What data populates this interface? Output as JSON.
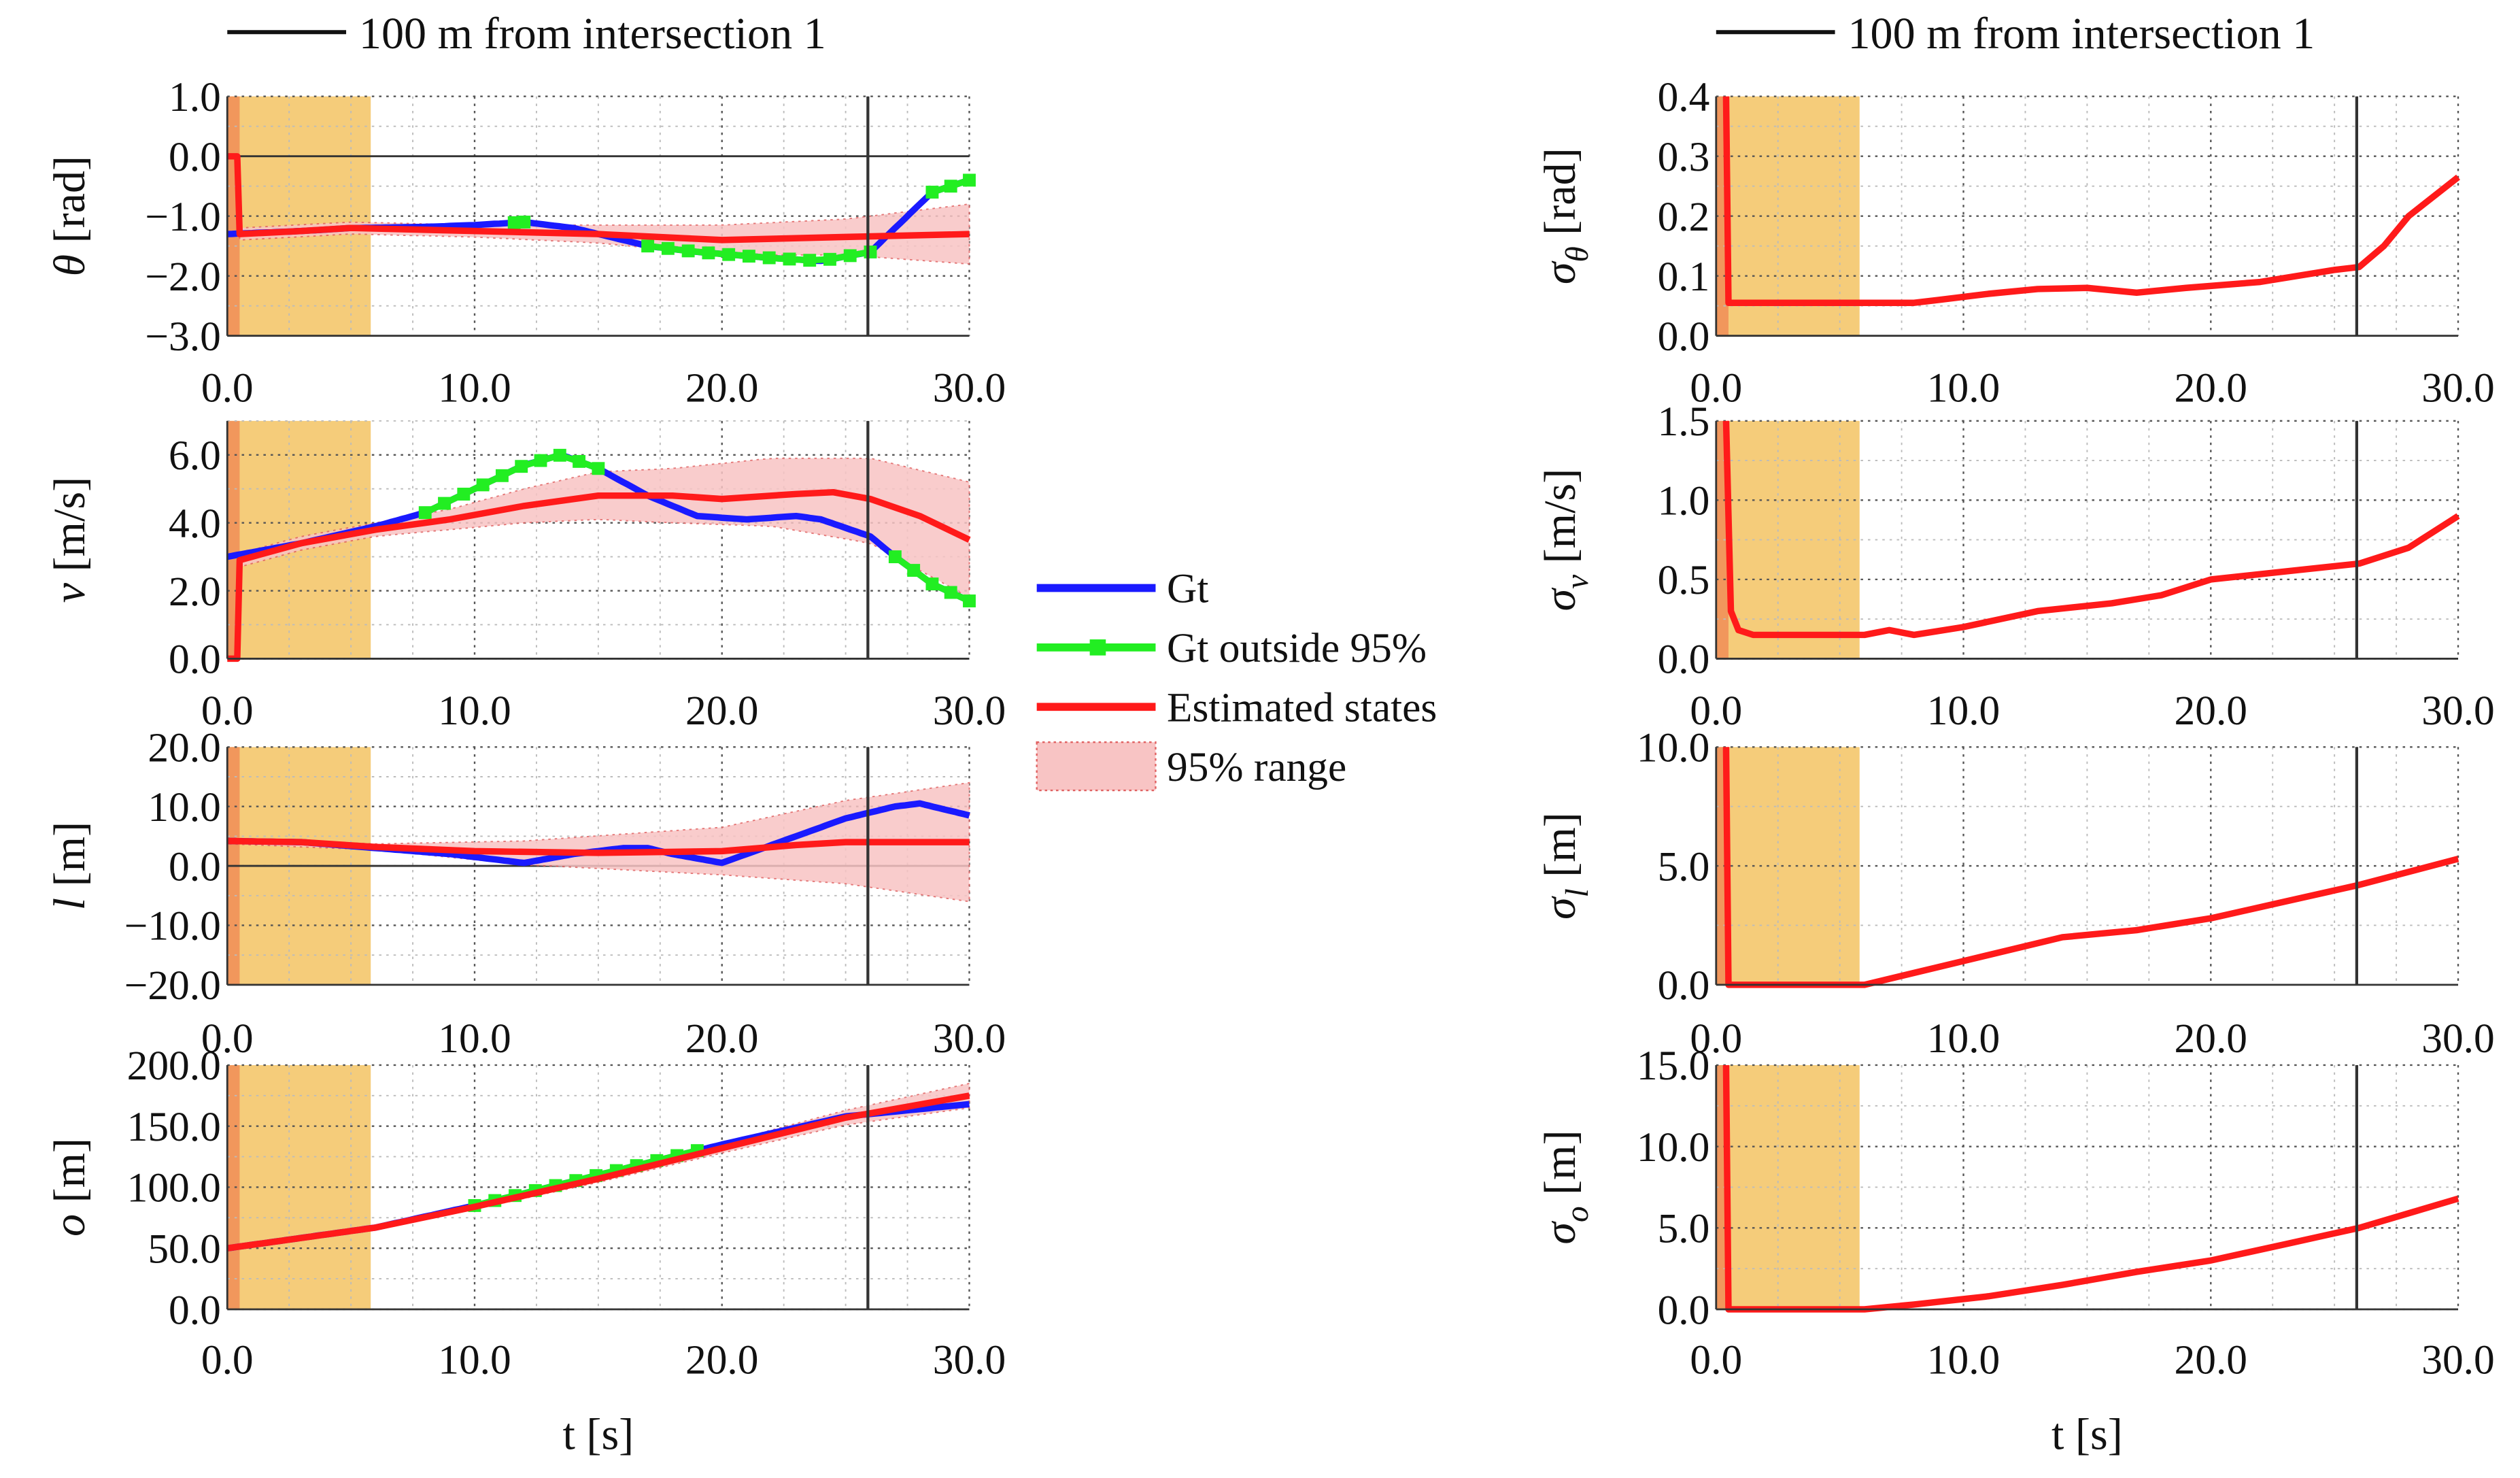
{
  "colors": {
    "gt": "#1a1aff",
    "gt_out": "#22ee22",
    "est": "#ff1a1a",
    "band": "#f8c4c4",
    "band_edge": "#e06060",
    "init": "#f5cc7a",
    "init_edge": "#f08050",
    "marker_line": "#333333"
  },
  "legend": {
    "items": [
      {
        "label": "Gt",
        "type": "line",
        "color_key": "gt"
      },
      {
        "label": "Gt outside 95%",
        "type": "marker-line",
        "color_key": "gt_out"
      },
      {
        "label": "Estimated states",
        "type": "line",
        "color_key": "est"
      },
      {
        "label": "95% range",
        "type": "patch",
        "color_key": "band"
      }
    ]
  },
  "chart_data": [
    {
      "type": "line",
      "column": "left",
      "title": "100 m from intersection 1",
      "ylabel": {
        "sym": "θ",
        "sub": "",
        "unit": " [rad]"
      },
      "xlabel": "",
      "ylim": [
        -3,
        1
      ],
      "yticks": [
        1,
        0,
        -1,
        -2,
        -3
      ],
      "ytick_labels": [
        "1.0",
        "0.0",
        "−1.0",
        "−2.0",
        "−3.0"
      ],
      "xlim": [
        0,
        30
      ],
      "xticks": [
        0,
        10,
        20,
        30
      ],
      "xtick_labels": [
        "0.0",
        "10.0",
        "20.0",
        "30.0"
      ],
      "zero_line": true,
      "init_period": [
        0,
        5.8
      ],
      "marker_t": 25.9,
      "gt": {
        "t": [
          0,
          3,
          5,
          8,
          10,
          12,
          14,
          16,
          17,
          19,
          22,
          24,
          26,
          27,
          28.5,
          30
        ],
        "y": [
          -1.3,
          -1.25,
          -1.2,
          -1.18,
          -1.15,
          -1.1,
          -1.2,
          -1.4,
          -1.5,
          -1.6,
          -1.7,
          -1.75,
          -1.6,
          -1.2,
          -0.6,
          -0.4
        ]
      },
      "gt_outside": [
        [
          11.6,
          12
        ],
        [
          17,
          26
        ],
        [
          28.5,
          30
        ]
      ],
      "est": {
        "t": [
          0,
          0.4,
          0.5,
          3,
          5,
          10,
          15,
          20,
          25,
          30
        ],
        "y": [
          0,
          0,
          -1.3,
          -1.25,
          -1.2,
          -1.25,
          -1.3,
          -1.4,
          -1.35,
          -1.3
        ]
      },
      "band": {
        "t": [
          0.5,
          5,
          10,
          15,
          20,
          25,
          30
        ],
        "lo": [
          -1.4,
          -1.3,
          -1.35,
          -1.45,
          -1.65,
          -1.65,
          -1.8
        ],
        "hi": [
          -1.2,
          -1.1,
          -1.15,
          -1.15,
          -1.15,
          -1.05,
          -0.8
        ]
      }
    },
    {
      "type": "line",
      "column": "left",
      "ylabel": {
        "sym": "v",
        "sub": "",
        "unit": " [m/s]"
      },
      "ylim": [
        0,
        7
      ],
      "yticks": [
        0,
        2,
        4,
        6
      ],
      "ytick_labels": [
        "0.0",
        "2.0",
        "4.0",
        "6.0"
      ],
      "xlim": [
        0,
        30
      ],
      "xticks": [
        0,
        10,
        20,
        30
      ],
      "xtick_labels": [
        "0.0",
        "10.0",
        "20.0",
        "30.0"
      ],
      "zero_line": false,
      "init_period": [
        0,
        5.8
      ],
      "marker_t": 25.9,
      "gt": {
        "t": [
          0,
          3,
          6,
          8,
          10,
          12,
          13.5,
          15,
          17,
          19,
          21,
          23,
          24,
          26,
          27,
          28.5,
          30
        ],
        "y": [
          3.0,
          3.4,
          3.9,
          4.3,
          5.0,
          5.7,
          6.0,
          5.6,
          4.8,
          4.2,
          4.1,
          4.2,
          4.1,
          3.6,
          3.0,
          2.2,
          1.7
        ]
      },
      "gt_outside": [
        [
          8,
          15
        ],
        [
          27,
          30
        ]
      ],
      "est": {
        "t": [
          0,
          0.4,
          0.5,
          3,
          6,
          9,
          12,
          15,
          18,
          20,
          23,
          24.5,
          26,
          28,
          30
        ],
        "y": [
          0,
          0,
          2.9,
          3.4,
          3.8,
          4.1,
          4.5,
          4.8,
          4.8,
          4.7,
          4.85,
          4.9,
          4.7,
          4.2,
          3.5
        ]
      },
      "band": {
        "t": [
          0.5,
          3,
          6,
          9,
          12,
          15,
          18,
          22,
          26,
          30
        ],
        "lo": [
          2.7,
          3.2,
          3.6,
          3.8,
          4.0,
          4.1,
          4.0,
          3.9,
          3.4,
          1.8
        ],
        "hi": [
          3.1,
          3.6,
          4.0,
          4.4,
          5.0,
          5.5,
          5.6,
          5.9,
          5.9,
          5.2
        ]
      }
    },
    {
      "type": "line",
      "column": "left",
      "ylabel": {
        "sym": "l",
        "sub": "",
        "unit": " [m]"
      },
      "ylim": [
        -20,
        20
      ],
      "yticks": [
        20,
        10,
        0,
        -10,
        -20
      ],
      "ytick_labels": [
        "20.0",
        "10.0",
        "0.0",
        "−10.0",
        "−20.0"
      ],
      "xlim": [
        0,
        30
      ],
      "xticks": [
        0,
        10,
        20,
        30
      ],
      "xtick_labels": [
        "0.0",
        "10.0",
        "20.0",
        "30.0"
      ],
      "zero_line": true,
      "init_period": [
        0,
        5.8
      ],
      "marker_t": 25.9,
      "gt": {
        "t": [
          0,
          3,
          6,
          9,
          11,
          12,
          14,
          16,
          17,
          18,
          20,
          21,
          23,
          25,
          27,
          28,
          30
        ],
        "y": [
          4.2,
          4,
          3,
          2,
          1,
          0.5,
          2,
          3,
          3,
          2,
          0.5,
          2,
          5,
          8,
          10,
          10.5,
          8.5
        ]
      },
      "gt_outside": [],
      "est": {
        "t": [
          0,
          3,
          6,
          10,
          15,
          20,
          23,
          25,
          30
        ],
        "y": [
          4.2,
          4,
          3.2,
          2.5,
          2.2,
          2.5,
          3.5,
          4,
          4
        ]
      },
      "band": {
        "t": [
          0,
          6,
          12,
          20,
          25,
          30
        ],
        "lo": [
          3.7,
          2.7,
          0.2,
          -1.5,
          -3,
          -6
        ],
        "hi": [
          4.7,
          3.7,
          4.2,
          6.5,
          11,
          14
        ]
      }
    },
    {
      "type": "line",
      "column": "left",
      "ylabel": {
        "sym": "o",
        "sub": "",
        "unit": " [m]"
      },
      "xlabel": "t [s]",
      "ylim": [
        0,
        200
      ],
      "yticks": [
        0,
        50,
        100,
        150,
        200
      ],
      "ytick_labels": [
        "0.0",
        "50.0",
        "100.0",
        "150.0",
        "200.0"
      ],
      "xlim": [
        0,
        30
      ],
      "xticks": [
        0,
        10,
        20,
        30
      ],
      "xtick_labels": [
        "0.0",
        "10.0",
        "20.0",
        "30.0"
      ],
      "zero_line": false,
      "init_period": [
        0,
        5.8
      ],
      "marker_t": 25.9,
      "gt": {
        "t": [
          0,
          6,
          10,
          15,
          20,
          25,
          30
        ],
        "y": [
          50,
          67,
          85,
          110,
          135,
          158,
          168
        ]
      },
      "gt_outside": [
        [
          10,
          19
        ]
      ],
      "est": {
        "t": [
          0,
          6,
          10,
          15,
          20,
          25,
          30
        ],
        "y": [
          50,
          67,
          84,
          107,
          132,
          157,
          175
        ]
      },
      "band": {
        "t": [
          0,
          6,
          10,
          15,
          20,
          25,
          30
        ],
        "lo": [
          49,
          66,
          82,
          104,
          128,
          151,
          165
        ],
        "hi": [
          51,
          68,
          86,
          110,
          136,
          163,
          185
        ]
      }
    },
    {
      "type": "line",
      "column": "right",
      "title": "100 m from intersection 1",
      "ylabel": {
        "sym": "σ",
        "sub": "θ",
        "unit": " [rad]"
      },
      "ylim": [
        0,
        0.4
      ],
      "yticks": [
        0,
        0.1,
        0.2,
        0.3,
        0.4
      ],
      "ytick_labels": [
        "0.0",
        "0.1",
        "0.2",
        "0.3",
        "0.4"
      ],
      "xlim": [
        0,
        30
      ],
      "xticks": [
        0,
        10,
        20,
        30
      ],
      "xtick_labels": [
        "0.0",
        "10.0",
        "20.0",
        "30.0"
      ],
      "init_period": [
        0,
        5.8
      ],
      "marker_t": 25.9,
      "est": {
        "t": [
          0.4,
          0.5,
          8,
          9,
          11,
          13,
          15,
          17,
          19,
          22,
          25,
          26,
          27,
          28,
          30
        ],
        "y": [
          0.4,
          0.055,
          0.055,
          0.06,
          0.07,
          0.078,
          0.08,
          0.072,
          0.08,
          0.09,
          0.11,
          0.115,
          0.15,
          0.2,
          0.265
        ]
      }
    },
    {
      "type": "line",
      "column": "right",
      "ylabel": {
        "sym": "σ",
        "sub": "v",
        "unit": " [m/s]"
      },
      "ylim": [
        0,
        1.5
      ],
      "yticks": [
        0,
        0.5,
        1,
        1.5
      ],
      "ytick_labels": [
        "0.0",
        "0.5",
        "1.0",
        "1.5"
      ],
      "xlim": [
        0,
        30
      ],
      "xticks": [
        0,
        10,
        20,
        30
      ],
      "xtick_labels": [
        "0.0",
        "10.0",
        "20.0",
        "30.0"
      ],
      "init_period": [
        0,
        5.8
      ],
      "marker_t": 25.9,
      "est": {
        "t": [
          0.4,
          0.6,
          0.9,
          1.5,
          6,
          7,
          8,
          10,
          13,
          16,
          18,
          20,
          23,
          26,
          28,
          30
        ],
        "y": [
          1.5,
          0.3,
          0.18,
          0.15,
          0.15,
          0.18,
          0.15,
          0.2,
          0.3,
          0.35,
          0.4,
          0.5,
          0.55,
          0.6,
          0.7,
          0.9
        ]
      }
    },
    {
      "type": "line",
      "column": "right",
      "ylabel": {
        "sym": "σ",
        "sub": "l",
        "unit": " [m]"
      },
      "ylim": [
        0,
        10
      ],
      "yticks": [
        0,
        5,
        10
      ],
      "ytick_labels": [
        "0.0",
        "5.0",
        "10.0"
      ],
      "xlim": [
        0,
        30
      ],
      "xticks": [
        0,
        10,
        20,
        30
      ],
      "xtick_labels": [
        "0.0",
        "10.0",
        "20.0",
        "30.0"
      ],
      "init_period": [
        0,
        5.8
      ],
      "marker_t": 25.9,
      "est": {
        "t": [
          0.4,
          0.5,
          6,
          8,
          10,
          14,
          17,
          20,
          23,
          26,
          30
        ],
        "y": [
          10,
          0,
          0,
          0.5,
          1,
          2,
          2.3,
          2.8,
          3.5,
          4.2,
          5.3
        ]
      }
    },
    {
      "type": "line",
      "column": "right",
      "ylabel": {
        "sym": "σ",
        "sub": "o",
        "unit": " [m]"
      },
      "xlabel": "t [s]",
      "ylim": [
        0,
        15
      ],
      "yticks": [
        0,
        5,
        10,
        15
      ],
      "ytick_labels": [
        "0.0",
        "5.0",
        "10.0",
        "15.0"
      ],
      "xlim": [
        0,
        30
      ],
      "xticks": [
        0,
        10,
        20,
        30
      ],
      "xtick_labels": [
        "0.0",
        "10.0",
        "20.0",
        "30.0"
      ],
      "init_period": [
        0,
        5.8
      ],
      "marker_t": 25.9,
      "est": {
        "t": [
          0.4,
          0.5,
          6,
          8,
          11,
          14,
          17,
          20,
          23,
          26,
          30
        ],
        "y": [
          15,
          0,
          0,
          0.3,
          0.8,
          1.5,
          2.3,
          3,
          4,
          5,
          6.8
        ]
      }
    }
  ]
}
